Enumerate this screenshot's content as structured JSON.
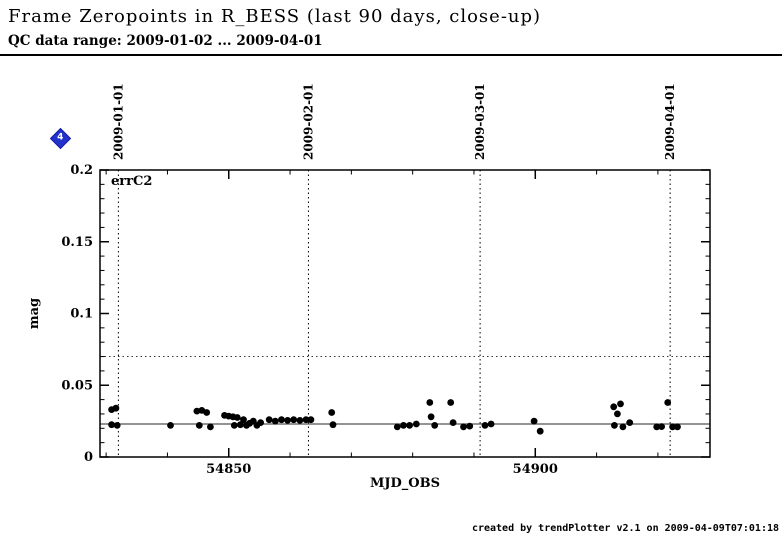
{
  "header": {
    "title": "Frame Zeropoints in R_BESS (last 90 days, close-up)",
    "subtitle": "QC data range: 2009-01-02 ... 2009-04-01"
  },
  "nav_marker": {
    "label": "4",
    "color": "#2233cc"
  },
  "footer": {
    "credit": "created by trendPlotter v2.1 on 2009-04-09T07:01:18"
  },
  "chart_data": {
    "type": "scatter",
    "series_label": "errC2",
    "xlabel": "MJD_OBS",
    "ylabel": "mag",
    "xlim": [
      54829,
      54928.5
    ],
    "ylim": [
      0,
      0.2
    ],
    "x_ticks": [
      54850,
      54900
    ],
    "x_tick_labels": [
      "54850",
      "54900"
    ],
    "x_minor_step": 10,
    "y_ticks": [
      0,
      0.05,
      0.1,
      0.15,
      0.2
    ],
    "y_tick_labels": [
      "0",
      "0.05",
      "0.1",
      "0.15",
      "0.2"
    ],
    "y_minor_step": 0.01,
    "grid": false,
    "point_color": "#000000",
    "median_line": 0.023,
    "threshold_line": 0.07,
    "date_lines": [
      {
        "mjd": 54832,
        "label": "2009-01-01"
      },
      {
        "mjd": 54863,
        "label": "2009-02-01"
      },
      {
        "mjd": 54891,
        "label": "2009-03-01"
      },
      {
        "mjd": 54922,
        "label": "2009-04-01"
      }
    ],
    "points": [
      [
        54830.9,
        0.033
      ],
      [
        54831.6,
        0.034
      ],
      [
        54830.9,
        0.0225
      ],
      [
        54831.8,
        0.022
      ],
      [
        54840.5,
        0.022
      ],
      [
        54844.8,
        0.032
      ],
      [
        54845.6,
        0.0325
      ],
      [
        54846.4,
        0.031
      ],
      [
        54845.2,
        0.022
      ],
      [
        54847.0,
        0.021
      ],
      [
        54849.3,
        0.029
      ],
      [
        54850.0,
        0.0285
      ],
      [
        54850.7,
        0.028
      ],
      [
        54851.4,
        0.0275
      ],
      [
        54850.9,
        0.022
      ],
      [
        54851.9,
        0.0225
      ],
      [
        54852.4,
        0.026
      ],
      [
        54852.9,
        0.022
      ],
      [
        54853.4,
        0.0235
      ],
      [
        54854.0,
        0.025
      ],
      [
        54854.6,
        0.022
      ],
      [
        54855.2,
        0.024
      ],
      [
        54856.6,
        0.026
      ],
      [
        54857.6,
        0.025
      ],
      [
        54858.6,
        0.026
      ],
      [
        54859.6,
        0.0255
      ],
      [
        54860.6,
        0.026
      ],
      [
        54861.6,
        0.0255
      ],
      [
        54862.6,
        0.026
      ],
      [
        54863.4,
        0.026
      ],
      [
        54866.8,
        0.031
      ],
      [
        54867.0,
        0.0225
      ],
      [
        54877.5,
        0.021
      ],
      [
        54878.5,
        0.022
      ],
      [
        54879.5,
        0.022
      ],
      [
        54880.6,
        0.023
      ],
      [
        54882.8,
        0.038
      ],
      [
        54883.0,
        0.028
      ],
      [
        54883.6,
        0.022
      ],
      [
        54886.2,
        0.038
      ],
      [
        54886.6,
        0.024
      ],
      [
        54888.3,
        0.021
      ],
      [
        54889.3,
        0.0215
      ],
      [
        54891.8,
        0.022
      ],
      [
        54892.8,
        0.023
      ],
      [
        54899.8,
        0.025
      ],
      [
        54900.8,
        0.018
      ],
      [
        54912.8,
        0.035
      ],
      [
        54913.9,
        0.037
      ],
      [
        54913.4,
        0.03
      ],
      [
        54912.9,
        0.022
      ],
      [
        54914.3,
        0.021
      ],
      [
        54915.4,
        0.024
      ],
      [
        54919.8,
        0.021
      ],
      [
        54920.6,
        0.0212
      ],
      [
        54921.6,
        0.038
      ],
      [
        54922.4,
        0.021
      ],
      [
        54923.2,
        0.021
      ]
    ]
  }
}
